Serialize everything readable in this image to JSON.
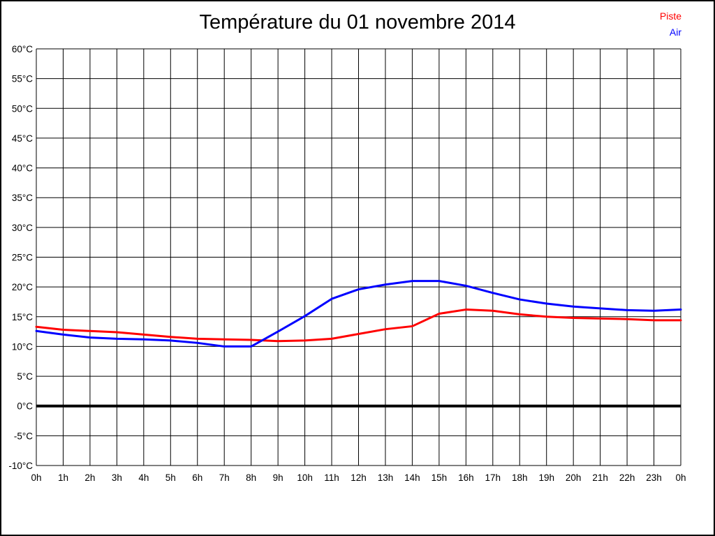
{
  "page": {
    "background": "#ffffff",
    "border_color": "#000000"
  },
  "header": {
    "title": "Température du 01 novembre 2014"
  },
  "legend": {
    "position": "top-right",
    "items": [
      {
        "label": "Piste",
        "color": "#ff0000"
      },
      {
        "label": "Air",
        "color": "#0000ff"
      }
    ]
  },
  "chart_data": {
    "type": "line",
    "title": "Température du 01 novembre 2014",
    "xlabel": "",
    "ylabel": "",
    "ylim": [
      -10,
      60
    ],
    "y_tick_step": 5,
    "grid": true,
    "grid_color": "#000000",
    "zero_line": true,
    "zero_line_color": "#000000",
    "legend_position": "top-right",
    "x_hours": [
      0,
      1,
      2,
      3,
      4,
      5,
      6,
      7,
      8,
      9,
      10,
      11,
      12,
      13,
      14,
      15,
      16,
      17,
      18,
      19,
      20,
      21,
      22,
      23,
      24
    ],
    "x_tick_labels": [
      "0h",
      "1h",
      "2h",
      "3h",
      "4h",
      "5h",
      "6h",
      "7h",
      "8h",
      "9h",
      "10h",
      "11h",
      "12h",
      "13h",
      "14h",
      "15h",
      "16h",
      "17h",
      "18h",
      "19h",
      "20h",
      "21h",
      "22h",
      "23h",
      "0h"
    ],
    "y_tick_labels": [
      "60°C",
      "55°C",
      "50°C",
      "45°C",
      "40°C",
      "35°C",
      "30°C",
      "25°C",
      "20°C",
      "15°C",
      "10°C",
      "5°C",
      "0°C",
      "-5°C",
      "-10°C"
    ],
    "series": [
      {
        "name": "Piste",
        "color": "#ff0000",
        "values": [
          13.3,
          12.8,
          12.6,
          12.4,
          12.0,
          11.6,
          11.3,
          11.2,
          11.1,
          10.9,
          11.0,
          11.3,
          12.1,
          12.9,
          13.4,
          15.5,
          16.2,
          16.0,
          15.4,
          15.0,
          14.8,
          14.7,
          14.6,
          14.4,
          14.4
        ]
      },
      {
        "name": "Air",
        "color": "#0000ff",
        "values": [
          12.6,
          12.0,
          11.5,
          11.3,
          11.2,
          11.0,
          10.6,
          10.0,
          10.0,
          12.5,
          15.1,
          18.0,
          19.6,
          20.4,
          21.0,
          21.0,
          20.2,
          19.0,
          17.9,
          17.2,
          16.7,
          16.4,
          16.1,
          16.0,
          16.2
        ]
      }
    ]
  }
}
